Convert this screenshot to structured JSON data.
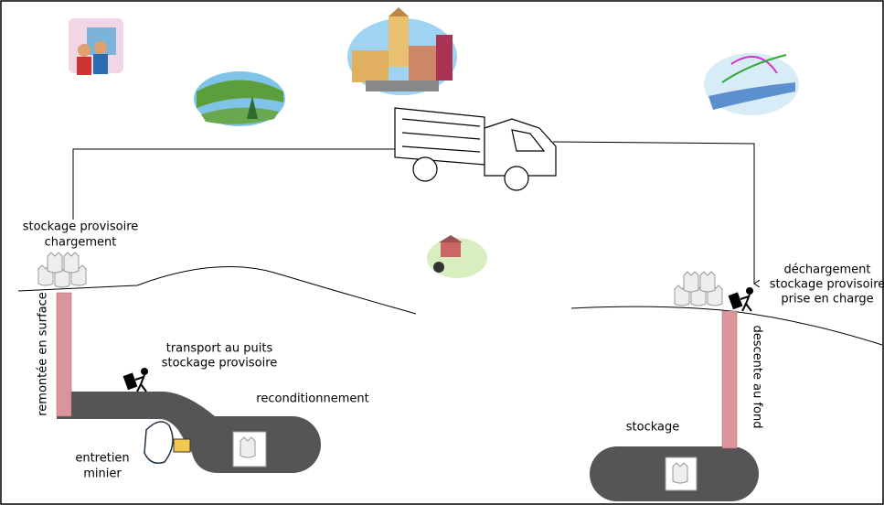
{
  "labels": {
    "loading": [
      "stockage provisoire",
      "chargement"
    ],
    "lift": "remontée en surface",
    "transport": [
      "transport au puits",
      "stockage provisoire"
    ],
    "repack": "reconditionnement",
    "maintenance": [
      "entretien",
      "minier"
    ],
    "unloading": [
      "déchargement",
      "stockage provisoire",
      "prise en charge"
    ],
    "descent": "descente au fond",
    "storage": "stockage"
  }
}
